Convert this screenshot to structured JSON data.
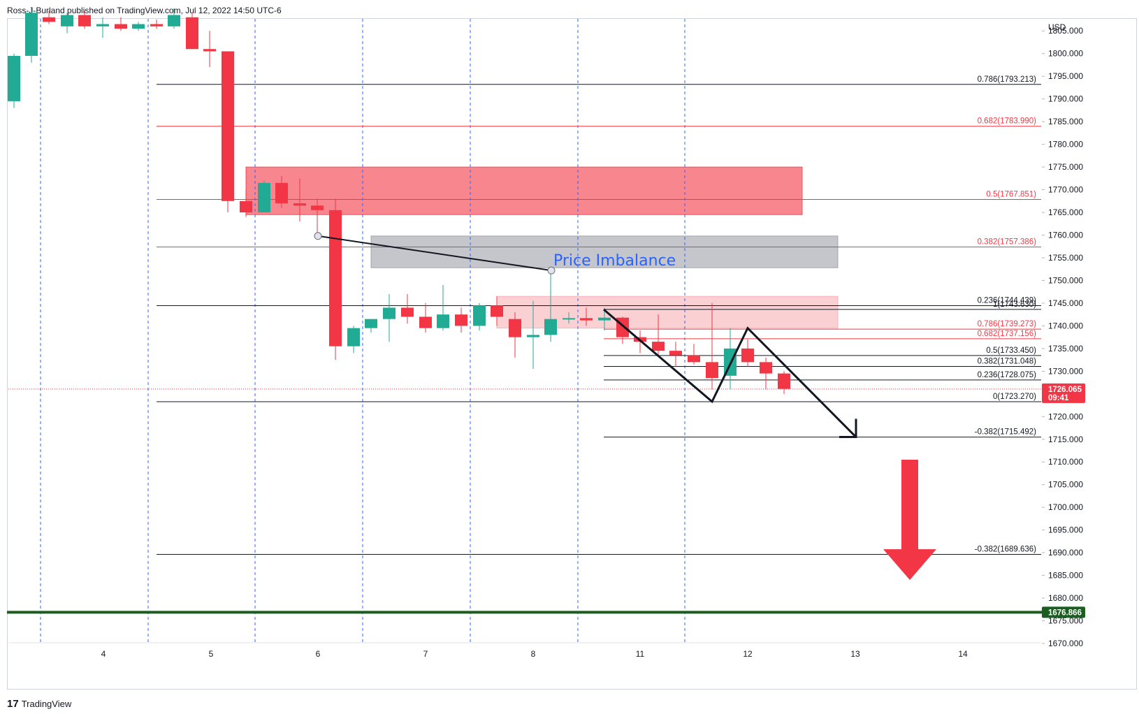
{
  "header": {
    "publisher_line": "Ross-J-Burland published on TradingView.com, Jul 12, 2022 14:50 UTC-6"
  },
  "footer": {
    "logo": "17",
    "brand": "TradingView"
  },
  "colors": {
    "up": "#26a69a",
    "up_body": "#22ab94",
    "down": "#f23645",
    "grid_dash": "#2962ff",
    "supply_zone": "#f23645",
    "imbalance": "#9598a1",
    "fvg": "#f7a9ae",
    "support": "#1b5e20"
  },
  "chart_data": {
    "type": "candlestick",
    "currency_label": "USD",
    "ylim": [
      1666.0,
      1807.5
    ],
    "xlim": [
      0,
      1500
    ],
    "y_ticks": [
      "1805.000",
      "1800.000",
      "1795.000",
      "1790.000",
      "1785.000",
      "1780.000",
      "1775.000",
      "1770.000",
      "1765.000",
      "1760.000",
      "1755.000",
      "1750.000",
      "1745.000",
      "1740.000",
      "1735.000",
      "1730.000",
      "1725.000",
      "1720.000",
      "1715.000",
      "1710.000",
      "1705.000",
      "1700.000",
      "1695.000",
      "1690.000",
      "1685.000",
      "1680.000",
      "1675.000",
      "1670.000"
    ],
    "x_ticks": [
      {
        "label": "4",
        "x": 136
      },
      {
        "label": "5",
        "x": 290
      },
      {
        "label": "6",
        "x": 443
      },
      {
        "label": "7",
        "x": 597
      },
      {
        "label": "8",
        "x": 751
      },
      {
        "label": "11",
        "x": 904
      },
      {
        "label": "12",
        "x": 1058
      },
      {
        "label": "13",
        "x": 1212
      },
      {
        "label": "14",
        "x": 1366
      }
    ],
    "session_lines_x": [
      46,
      200,
      353,
      507,
      661,
      815,
      968
    ],
    "candles": [
      {
        "x": 8,
        "o": 1789.5,
        "h": 1800.0,
        "l": 1788.0,
        "c": 1799.5
      },
      {
        "x": 33,
        "o": 1799.5,
        "h": 1810.0,
        "l": 1798.0,
        "c": 1809.0
      },
      {
        "x": 58,
        "o": 1808.0,
        "h": 1809.5,
        "l": 1806.5,
        "c": 1807.0
      },
      {
        "x": 84,
        "o": 1806.0,
        "h": 1809.0,
        "l": 1804.5,
        "c": 1808.5
      },
      {
        "x": 109,
        "o": 1808.5,
        "h": 1809.5,
        "l": 1805.5,
        "c": 1806.0
      },
      {
        "x": 135,
        "o": 1806.0,
        "h": 1808.0,
        "l": 1803.5,
        "c": 1806.5
      },
      {
        "x": 161,
        "o": 1806.5,
        "h": 1808.0,
        "l": 1805.0,
        "c": 1805.5
      },
      {
        "x": 186,
        "o": 1805.5,
        "h": 1807.0,
        "l": 1805.0,
        "c": 1806.5
      },
      {
        "x": 212,
        "o": 1806.5,
        "h": 1807.5,
        "l": 1805.5,
        "c": 1806.0
      },
      {
        "x": 237,
        "o": 1806.0,
        "h": 1810.0,
        "l": 1805.5,
        "c": 1808.5
      },
      {
        "x": 263,
        "o": 1808.0,
        "h": 1809.0,
        "l": 1801.0,
        "c": 1801.0
      },
      {
        "x": 288,
        "o": 1801.0,
        "h": 1805.0,
        "l": 1797.0,
        "c": 1800.5
      },
      {
        "x": 314,
        "o": 1800.5,
        "h": 1800.5,
        "l": 1765.0,
        "c": 1767.5
      },
      {
        "x": 340,
        "o": 1767.5,
        "h": 1770.0,
        "l": 1764.0,
        "c": 1765.0
      },
      {
        "x": 366,
        "o": 1765.0,
        "h": 1772.0,
        "l": 1765.0,
        "c": 1771.5
      },
      {
        "x": 391,
        "o": 1771.5,
        "h": 1773.0,
        "l": 1766.0,
        "c": 1767.0
      },
      {
        "x": 417,
        "o": 1767.0,
        "h": 1772.5,
        "l": 1763.0,
        "c": 1766.5
      },
      {
        "x": 442,
        "o": 1766.5,
        "h": 1768.0,
        "l": 1760.0,
        "c": 1765.5
      },
      {
        "x": 468,
        "o": 1765.5,
        "h": 1768.0,
        "l": 1732.5,
        "c": 1735.5
      },
      {
        "x": 494,
        "o": 1735.5,
        "h": 1740.0,
        "l": 1734.0,
        "c": 1739.5
      },
      {
        "x": 519,
        "o": 1739.5,
        "h": 1741.5,
        "l": 1738.5,
        "c": 1741.5
      },
      {
        "x": 545,
        "o": 1741.5,
        "h": 1747.0,
        "l": 1736.5,
        "c": 1744.0
      },
      {
        "x": 571,
        "o": 1744.0,
        "h": 1747.0,
        "l": 1740.5,
        "c": 1742.0
      },
      {
        "x": 597,
        "o": 1742.0,
        "h": 1745.0,
        "l": 1738.5,
        "c": 1739.5
      },
      {
        "x": 622,
        "o": 1739.5,
        "h": 1749.0,
        "l": 1739.0,
        "c": 1742.5
      },
      {
        "x": 648,
        "o": 1742.5,
        "h": 1744.0,
        "l": 1738.5,
        "c": 1740.0
      },
      {
        "x": 674,
        "o": 1740.0,
        "h": 1745.0,
        "l": 1739.0,
        "c": 1744.5
      },
      {
        "x": 699,
        "o": 1744.5,
        "h": 1746.5,
        "l": 1740.0,
        "c": 1742.0
      },
      {
        "x": 725,
        "o": 1741.5,
        "h": 1743.0,
        "l": 1733.0,
        "c": 1737.5
      },
      {
        "x": 751,
        "o": 1737.5,
        "h": 1745.5,
        "l": 1730.5,
        "c": 1738.0
      },
      {
        "x": 776,
        "o": 1738.0,
        "h": 1752.0,
        "l": 1736.5,
        "c": 1741.5
      },
      {
        "x": 802,
        "o": 1741.5,
        "h": 1743.0,
        "l": 1740.5,
        "c": 1741.7
      },
      {
        "x": 827,
        "o": 1741.7,
        "h": 1744.0,
        "l": 1740.0,
        "c": 1741.2
      },
      {
        "x": 853,
        "o": 1741.2,
        "h": 1744.0,
        "l": 1739.0,
        "c": 1741.8
      },
      {
        "x": 879,
        "o": 1741.8,
        "h": 1742.0,
        "l": 1736.0,
        "c": 1737.5
      },
      {
        "x": 904,
        "o": 1737.5,
        "h": 1739.0,
        "l": 1734.0,
        "c": 1736.5
      },
      {
        "x": 930,
        "o": 1736.5,
        "h": 1742.5,
        "l": 1733.5,
        "c": 1734.5
      },
      {
        "x": 955,
        "o": 1734.5,
        "h": 1736.5,
        "l": 1731.0,
        "c": 1733.5
      },
      {
        "x": 981,
        "o": 1733.5,
        "h": 1736.0,
        "l": 1731.5,
        "c": 1732.0
      },
      {
        "x": 1007,
        "o": 1732.0,
        "h": 1745.0,
        "l": 1726.0,
        "c": 1728.5
      },
      {
        "x": 1033,
        "o": 1729.0,
        "h": 1739.5,
        "l": 1726.0,
        "c": 1735.0
      },
      {
        "x": 1058,
        "o": 1735.0,
        "h": 1737.0,
        "l": 1731.0,
        "c": 1732.0
      },
      {
        "x": 1084,
        "o": 1732.0,
        "h": 1733.0,
        "l": 1726.0,
        "c": 1729.5
      },
      {
        "x": 1110,
        "o": 1729.5,
        "h": 1730.0,
        "l": 1725.0,
        "c": 1726.1
      }
    ],
    "horizontal_levels": [
      {
        "price": 1793.213,
        "label": "0.786(1793.213)",
        "color": "#131722",
        "x1": 212
      },
      {
        "price": 1783.99,
        "label": "0.682(1783.990)",
        "color": "#f23645",
        "x1": 212
      },
      {
        "price": 1767.851,
        "label": "0.5(1767.851)",
        "color": "#f23645",
        "x1": 212
      },
      {
        "price": 1757.386,
        "label": "0.382(1757.386)",
        "color": "#f23645",
        "x1": 212
      },
      {
        "price": 1744.439,
        "label": "0.236(1744.439)",
        "color": "#131722",
        "x1": 212
      },
      {
        "price": 1743.63,
        "label": "1(1743.630)",
        "color": "#131722",
        "x1": 852
      },
      {
        "price": 1739.273,
        "label": "0.786(1739.273)",
        "color": "#f23645",
        "x1": 852
      },
      {
        "price": 1737.156,
        "label": "0.682(1737.156)",
        "color": "#f23645",
        "x1": 852
      },
      {
        "price": 1733.45,
        "label": "0.5(1733.450)",
        "color": "#131722",
        "x1": 852
      },
      {
        "price": 1731.048,
        "label": "0.382(1731.048)",
        "color": "#131722",
        "x1": 852
      },
      {
        "price": 1728.075,
        "label": "0.236(1728.075)",
        "color": "#131722",
        "x1": 852
      },
      {
        "price": 1723.27,
        "label": "0(1723.270)",
        "color": "#131722",
        "x1": 212
      },
      {
        "price": 1715.492,
        "label": "-0.382(1715.492)",
        "color": "#131722",
        "x1": 852
      },
      {
        "price": 1689.636,
        "label": "-0.382(1689.636)",
        "color": "#131722",
        "x1": 212
      }
    ],
    "zones": [
      {
        "name": "supply-zone",
        "x1": 340,
        "x2": 1136,
        "y_top": 1775.0,
        "y_bottom": 1764.5,
        "fill": "#f23645",
        "opacity": 0.6
      },
      {
        "name": "price-imbalance-zone",
        "x1": 519,
        "x2": 1187,
        "y_top": 1759.8,
        "y_bottom": 1752.8,
        "fill": "#9598a1",
        "opacity": 0.55
      },
      {
        "name": "fvg-zone",
        "x1": 699,
        "x2": 1187,
        "y_top": 1746.5,
        "y_bottom": 1739.5,
        "fill": "#f7a9ae",
        "opacity": 0.55
      }
    ],
    "annotation": {
      "text": "Price Imbalance",
      "x": 780,
      "y": 1754.5
    },
    "trendline": {
      "x1": 443,
      "y1": 1759.8,
      "x2": 777,
      "y2": 1752.2
    },
    "pattern_path": [
      {
        "x": 852,
        "y": 1743.6
      },
      {
        "x": 1007,
        "y": 1723.3
      },
      {
        "x": 1058,
        "y": 1739.5
      },
      {
        "x": 1213,
        "y": 1715.5
      }
    ],
    "support_level": {
      "price": 1676.866,
      "label": "1676.866"
    },
    "last_price": {
      "price": 1726.065,
      "label": "1726.065",
      "countdown": "09:41"
    },
    "down_arrow": {
      "x": 1290,
      "y_top": 1710.5,
      "y_bottom": 1684.0
    }
  }
}
